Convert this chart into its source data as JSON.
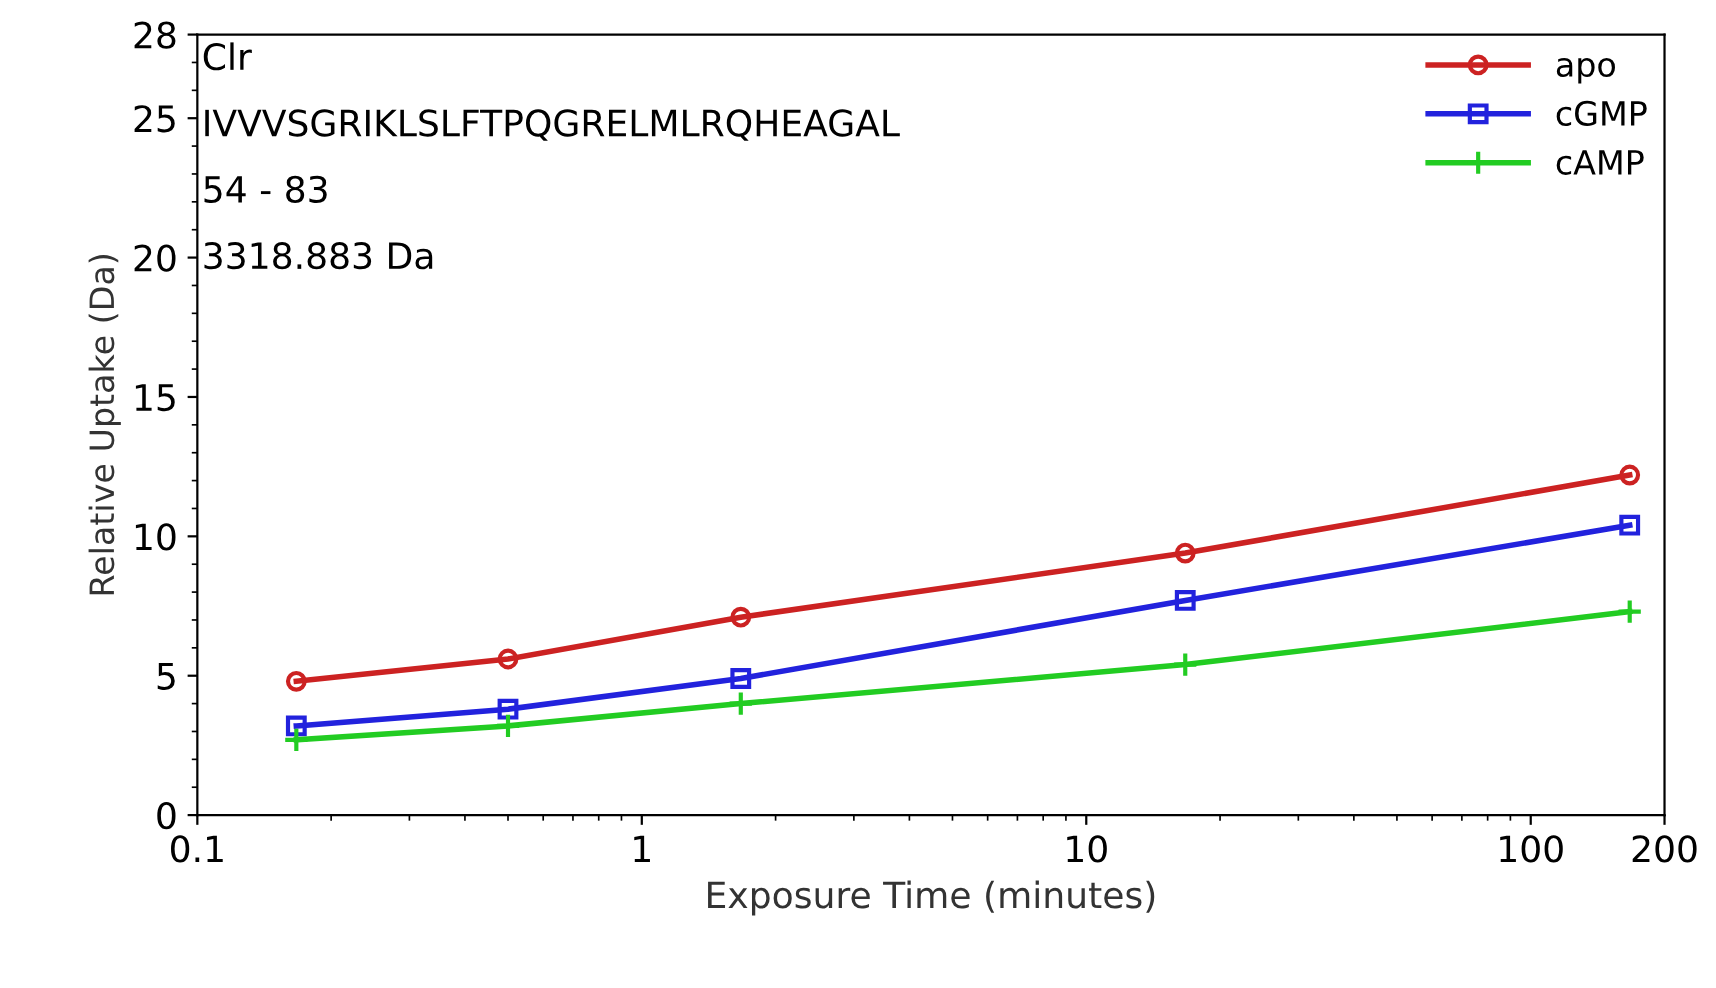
{
  "chart_data": {
    "type": "line",
    "xlabel": "Exposure Time (minutes)",
    "ylabel": "Relative Uptake (Da)",
    "annotations": [
      "Clr",
      "IVVVSGRIKLSLFTPQGRELMLRQHEAGAL",
      "54 - 83",
      "3318.883 Da"
    ],
    "x": [
      0.167,
      0.5,
      1.67,
      16.7,
      167
    ],
    "series": [
      {
        "name": "apo",
        "color": "#cc2222",
        "marker": "circle",
        "values": [
          4.8,
          5.6,
          7.1,
          9.4,
          12.2
        ]
      },
      {
        "name": "cGMP",
        "color": "#2222dd",
        "marker": "square",
        "values": [
          3.2,
          3.8,
          4.9,
          7.7,
          10.4
        ]
      },
      {
        "name": "cAMP",
        "color": "#22cc22",
        "marker": "cross",
        "values": [
          2.7,
          3.2,
          4.0,
          5.4,
          7.3
        ]
      }
    ],
    "log": "x",
    "xlim": [
      0.1,
      200
    ],
    "xticks": [
      0.1,
      1,
      10,
      100,
      200
    ],
    "ylim": [
      0,
      28
    ],
    "yticks": [
      0,
      5,
      10,
      15,
      20,
      25,
      28
    ],
    "grid": false,
    "legend": "top right"
  }
}
